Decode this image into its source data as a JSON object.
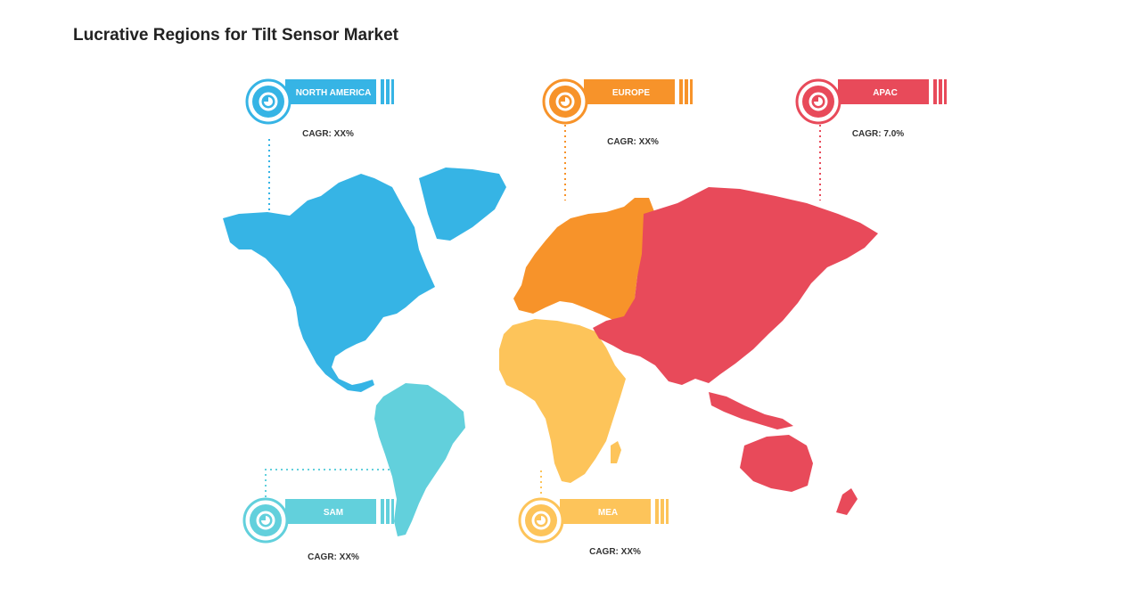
{
  "title": "Lucrative Regions for Tilt Sensor Market",
  "regions": [
    {
      "name": "NORTH AMERICA",
      "cagr": "CAGR: XX%",
      "color": "#36b4e5",
      "icon": "pie-chart-icon"
    },
    {
      "name": "EUROPE",
      "cagr": "CAGR: XX%",
      "color": "#f7932a",
      "icon": "pie-chart-icon"
    },
    {
      "name": "APAC",
      "cagr": "CAGR: 7.0%",
      "color": "#e84a5a",
      "icon": "pie-chart-icon"
    },
    {
      "name": "SAM",
      "cagr": "CAGR: XX%",
      "color": "#62d0dc",
      "icon": "pie-chart-icon"
    },
    {
      "name": "MEA",
      "cagr": "CAGR: XX%",
      "color": "#fdc45a",
      "icon": "pie-chart-icon"
    }
  ]
}
